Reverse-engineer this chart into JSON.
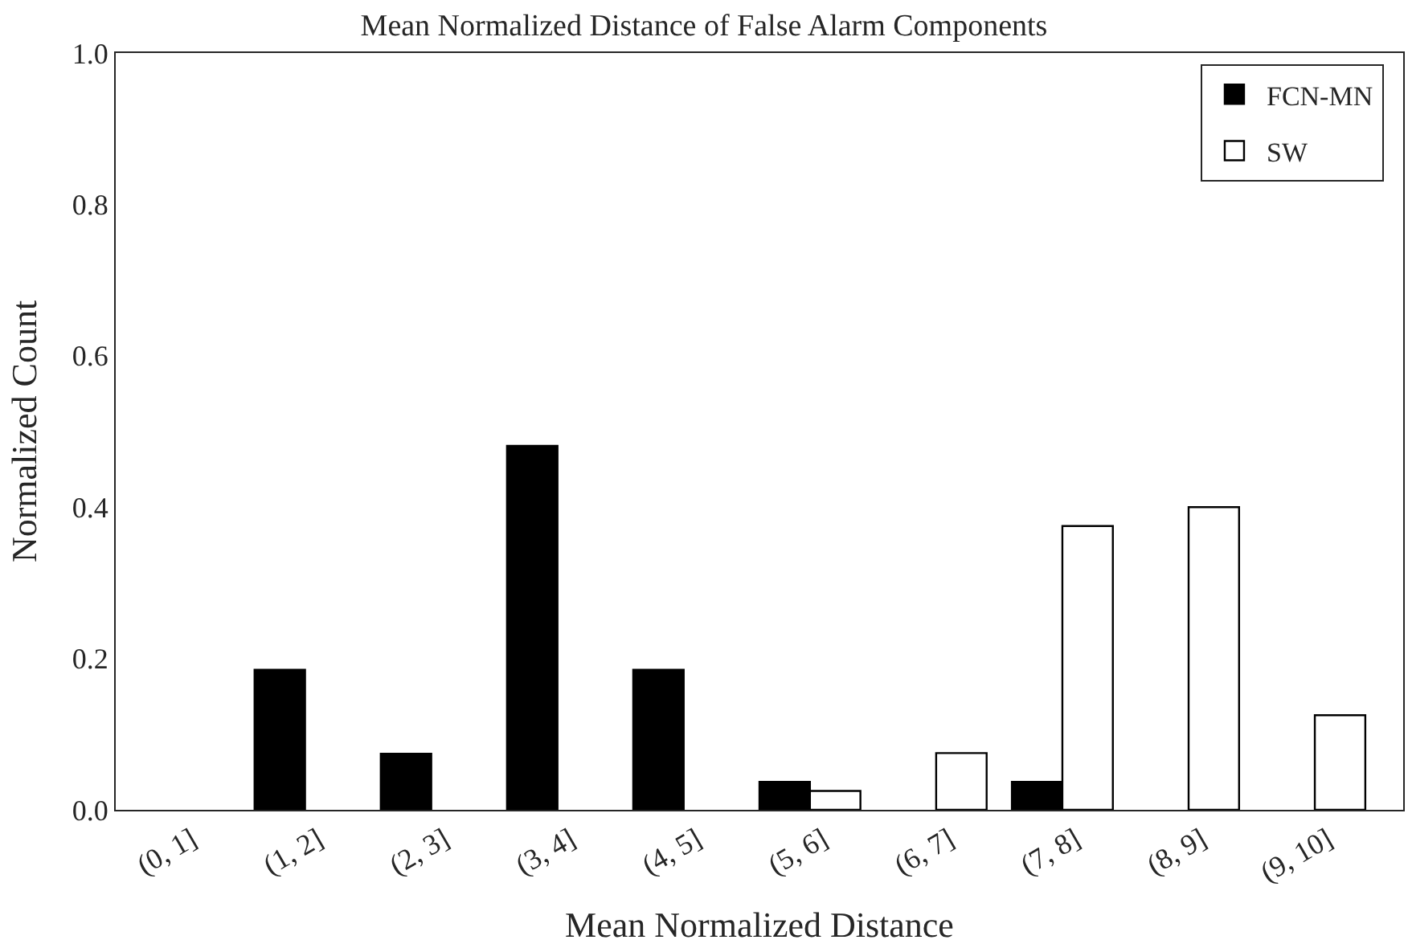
{
  "chart_data": {
    "type": "bar",
    "title": "Mean Normalized Distance of False Alarm Components",
    "xlabel": "Mean Normalized Distance",
    "ylabel": "Normalized Count",
    "categories": [
      "(0, 1]",
      "(1, 2]",
      "(2, 3]",
      "(3, 4]",
      "(4, 5]",
      "(5, 6]",
      "(6, 7]",
      "(7, 8]",
      "(8, 9]",
      "(9, 10]"
    ],
    "series": [
      {
        "name": "FCN-MN",
        "color": "#000000",
        "values": [
          0,
          0.185,
          0.074,
          0.481,
          0.185,
          0.037,
          0,
          0.037,
          0,
          0
        ]
      },
      {
        "name": "SW",
        "color": "#ffffff",
        "values": [
          0,
          0,
          0,
          0,
          0,
          0.025,
          0.075,
          0.375,
          0.4,
          0.125
        ]
      }
    ],
    "ylim": [
      0,
      1.0
    ],
    "yticks": [
      {
        "value": 0,
        "label": "0.0"
      },
      {
        "value": 0.2,
        "label": "0.2"
      },
      {
        "value": 0.4,
        "label": "0.4"
      },
      {
        "value": 0.6,
        "label": "0.6"
      },
      {
        "value": 0.8,
        "label": "0.8"
      },
      {
        "value": 1.0,
        "label": "1.0"
      }
    ],
    "legend": "top right"
  }
}
